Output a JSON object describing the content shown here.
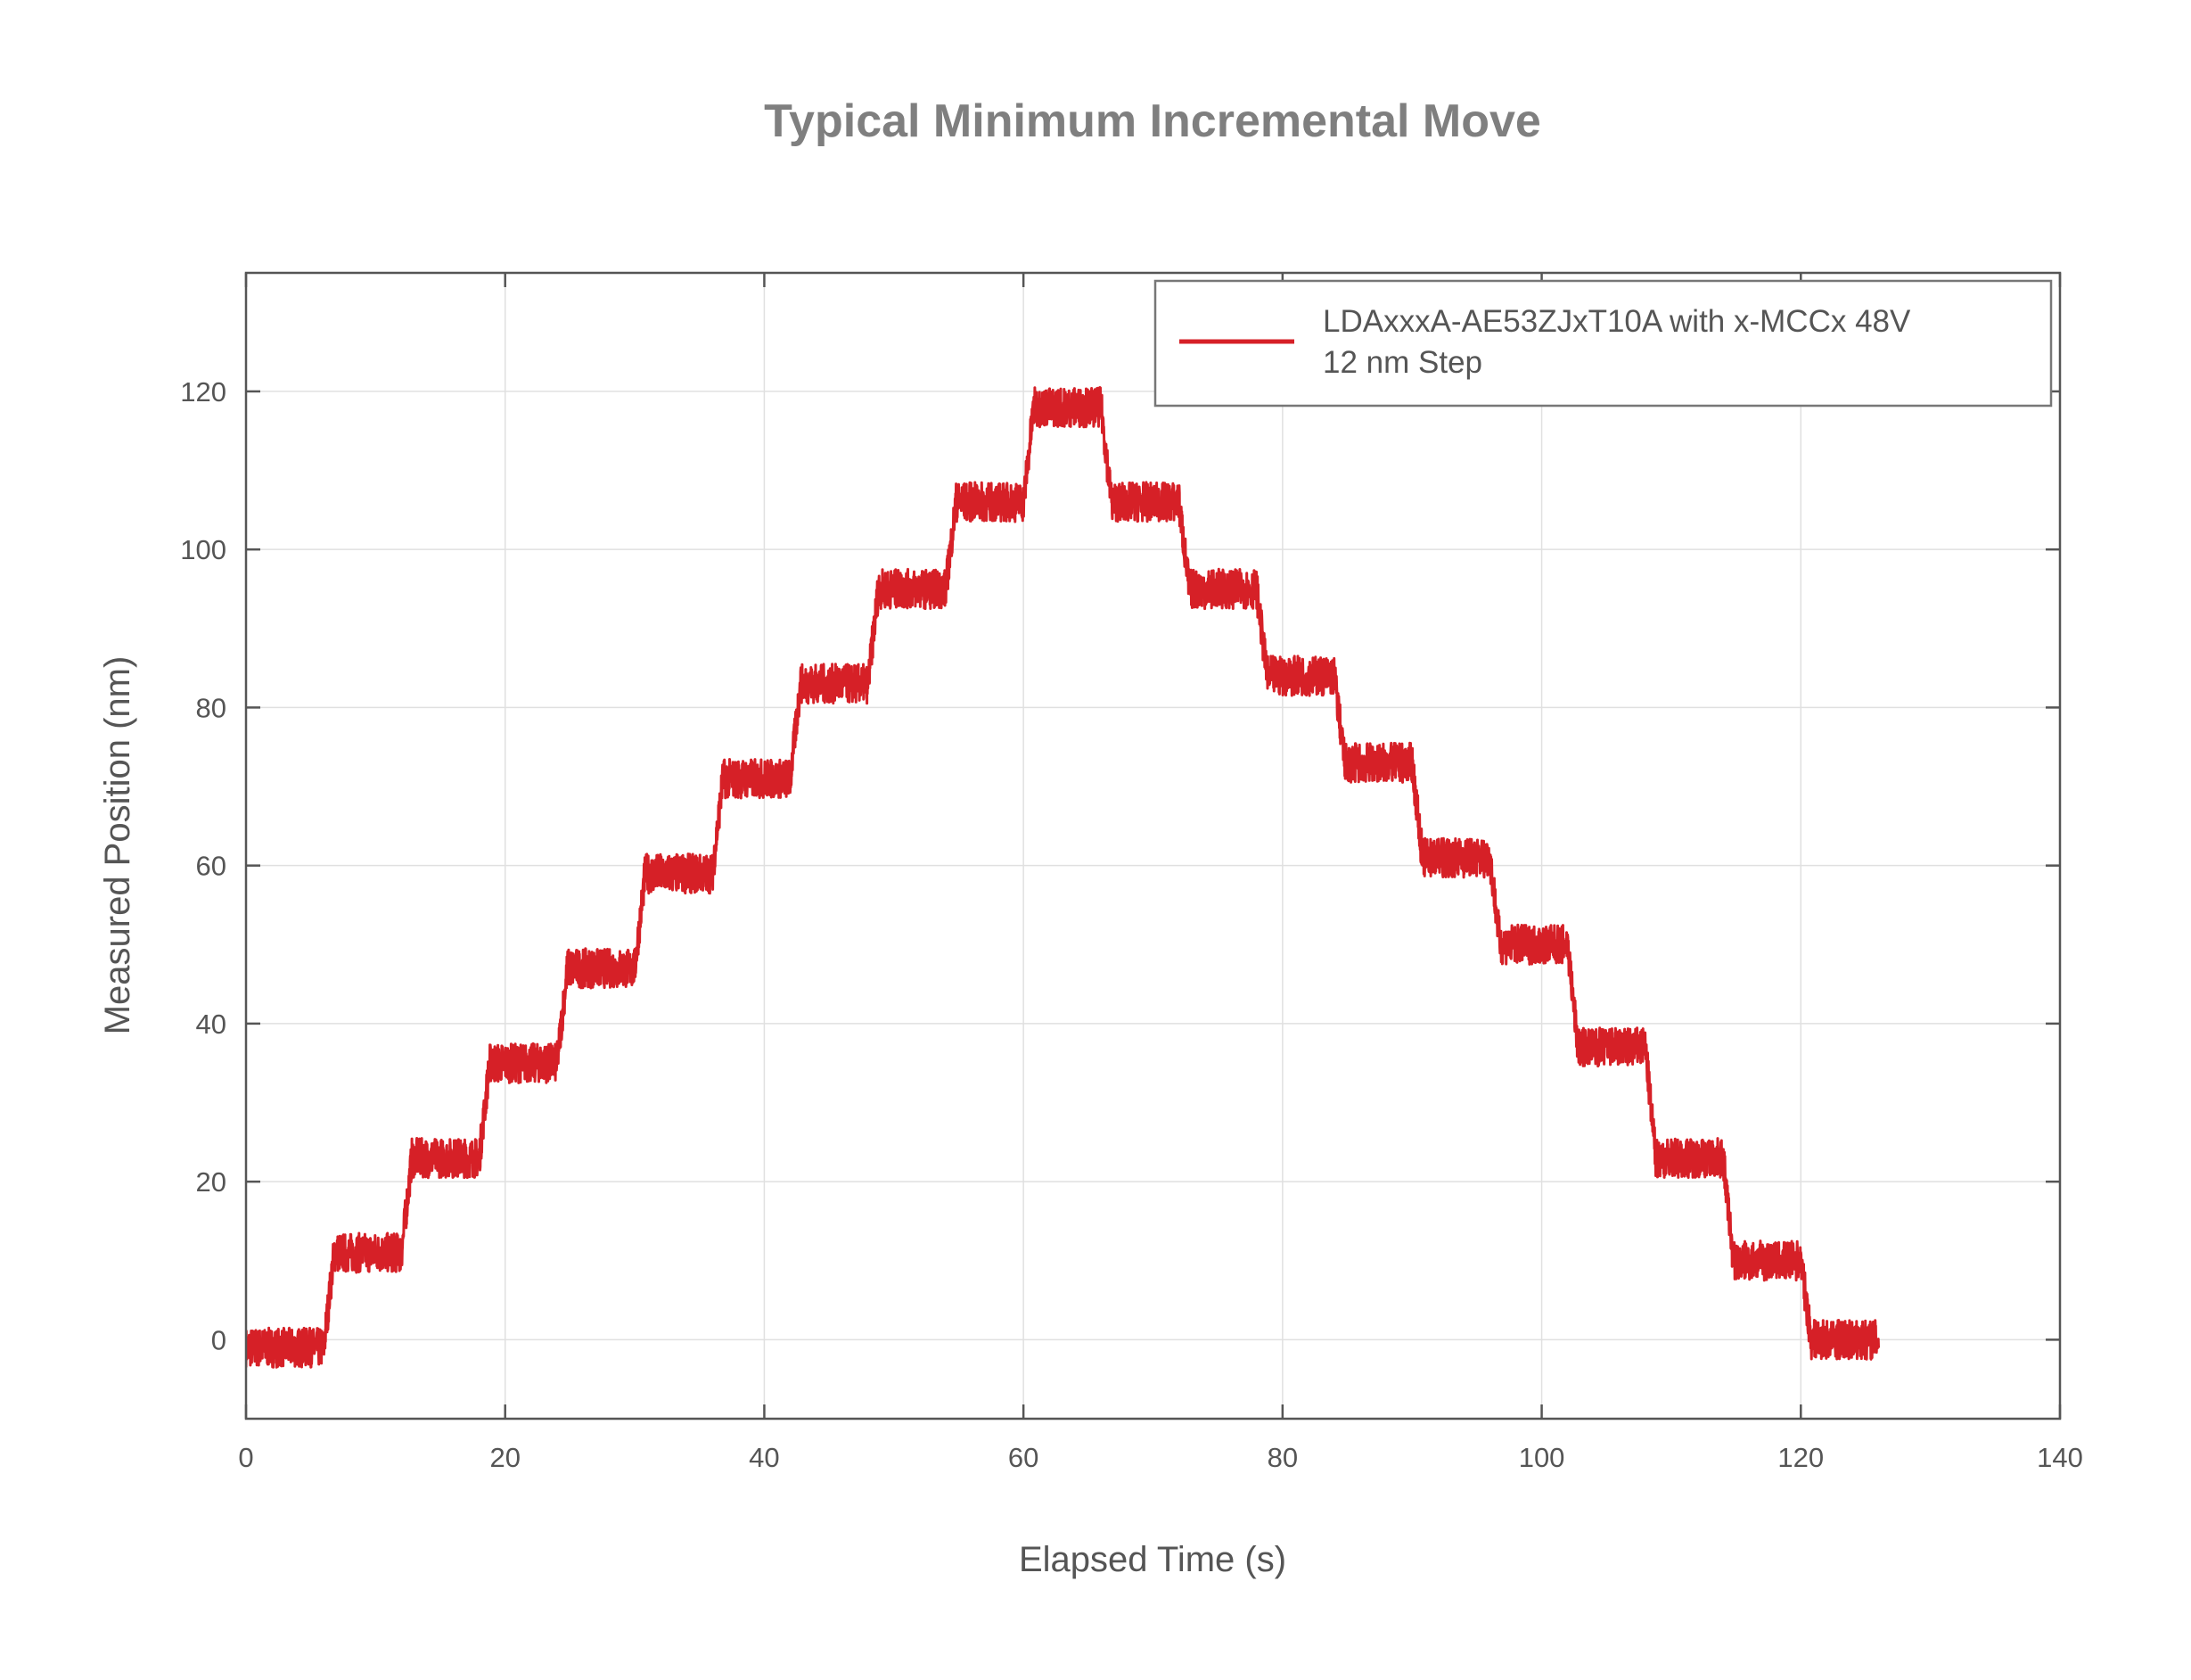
{
  "chart_data": {
    "type": "line",
    "title": "Typical Minimum Incremental Move",
    "xlabel": "Elapsed Time (s)",
    "ylabel": "Measured Position (nm)",
    "xlim": [
      0,
      140
    ],
    "ylim": [
      -10,
      135
    ],
    "xticks": [
      "0",
      "20",
      "40",
      "60",
      "80",
      "100",
      "120",
      "140"
    ],
    "yticks": [
      "0",
      "20",
      "40",
      "60",
      "80",
      "100",
      "120"
    ],
    "grid": true,
    "legend_position": "top-right",
    "series": [
      {
        "name": "LDAxxxA-AE53ZJxT10A with x-MCCx 48V",
        "name_line2": "12 nm Step",
        "color": "#d62027",
        "step_start_times": [
          0,
          6,
          12,
          18,
          24,
          30,
          36,
          42,
          48,
          54,
          60,
          66,
          72,
          78,
          84,
          90,
          96,
          102,
          108,
          114,
          120
        ],
        "end_time": 126,
        "levels": [
          -1,
          11,
          23,
          35,
          47,
          59,
          71,
          83,
          95,
          106,
          118,
          106,
          95,
          84,
          73,
          61,
          50,
          37,
          23,
          10,
          0
        ],
        "noise_band": 2.5
      }
    ]
  }
}
